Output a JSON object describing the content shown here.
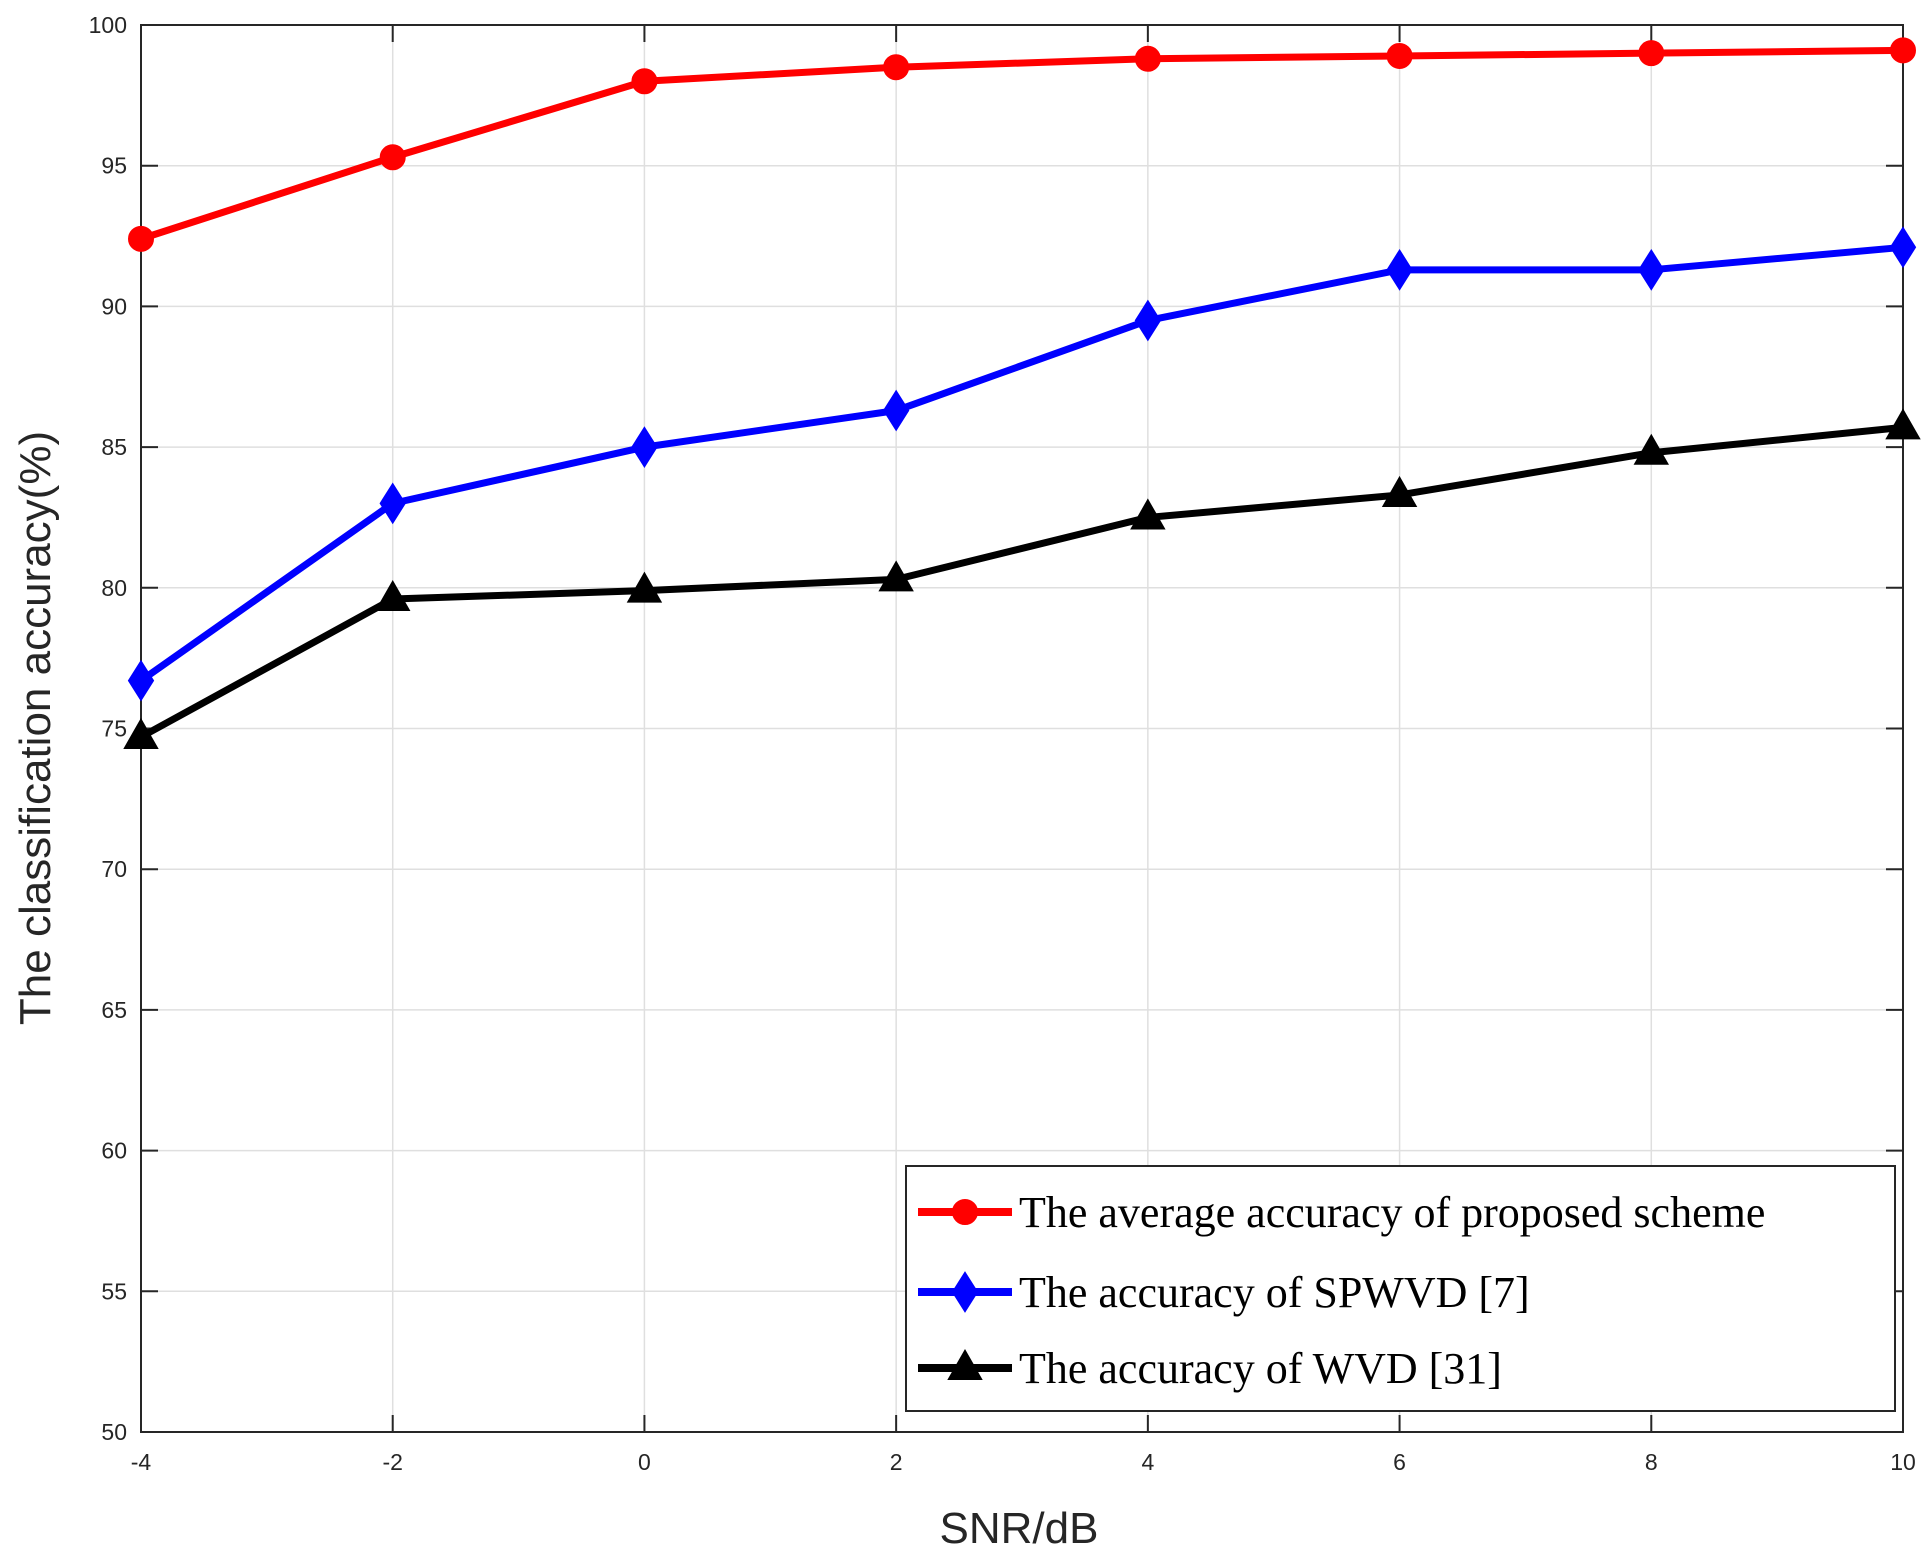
{
  "chart_data": {
    "type": "line",
    "title": "",
    "xlabel": "SNR/dB",
    "ylabel": "The classification accuracy(%)",
    "x": [
      -4,
      -2,
      0,
      2,
      4,
      6,
      8,
      10
    ],
    "xlim": [
      -4,
      10
    ],
    "ylim": [
      50,
      100
    ],
    "xticks": [
      -4,
      -2,
      0,
      2,
      4,
      6,
      8,
      10
    ],
    "yticks": [
      50,
      55,
      60,
      65,
      70,
      75,
      80,
      85,
      90,
      95,
      100
    ],
    "grid": true,
    "legend_location": "bottom-right",
    "series": [
      {
        "name": "The average accuracy of proposed scheme",
        "color": "#ff0000",
        "marker": "circle",
        "values": [
          92.4,
          95.3,
          98.0,
          98.5,
          98.8,
          98.9,
          99.0,
          99.1
        ]
      },
      {
        "name": "The accuracy of SPWVD [7]",
        "color": "#0000ff",
        "marker": "diamond",
        "values": [
          76.7,
          83.0,
          85.0,
          86.3,
          89.5,
          91.3,
          91.3,
          92.1
        ]
      },
      {
        "name": "The accuracy of WVD [31]",
        "color": "#000000",
        "marker": "triangle",
        "values": [
          74.7,
          79.6,
          79.9,
          80.3,
          82.5,
          83.3,
          84.8,
          85.7
        ]
      }
    ]
  }
}
